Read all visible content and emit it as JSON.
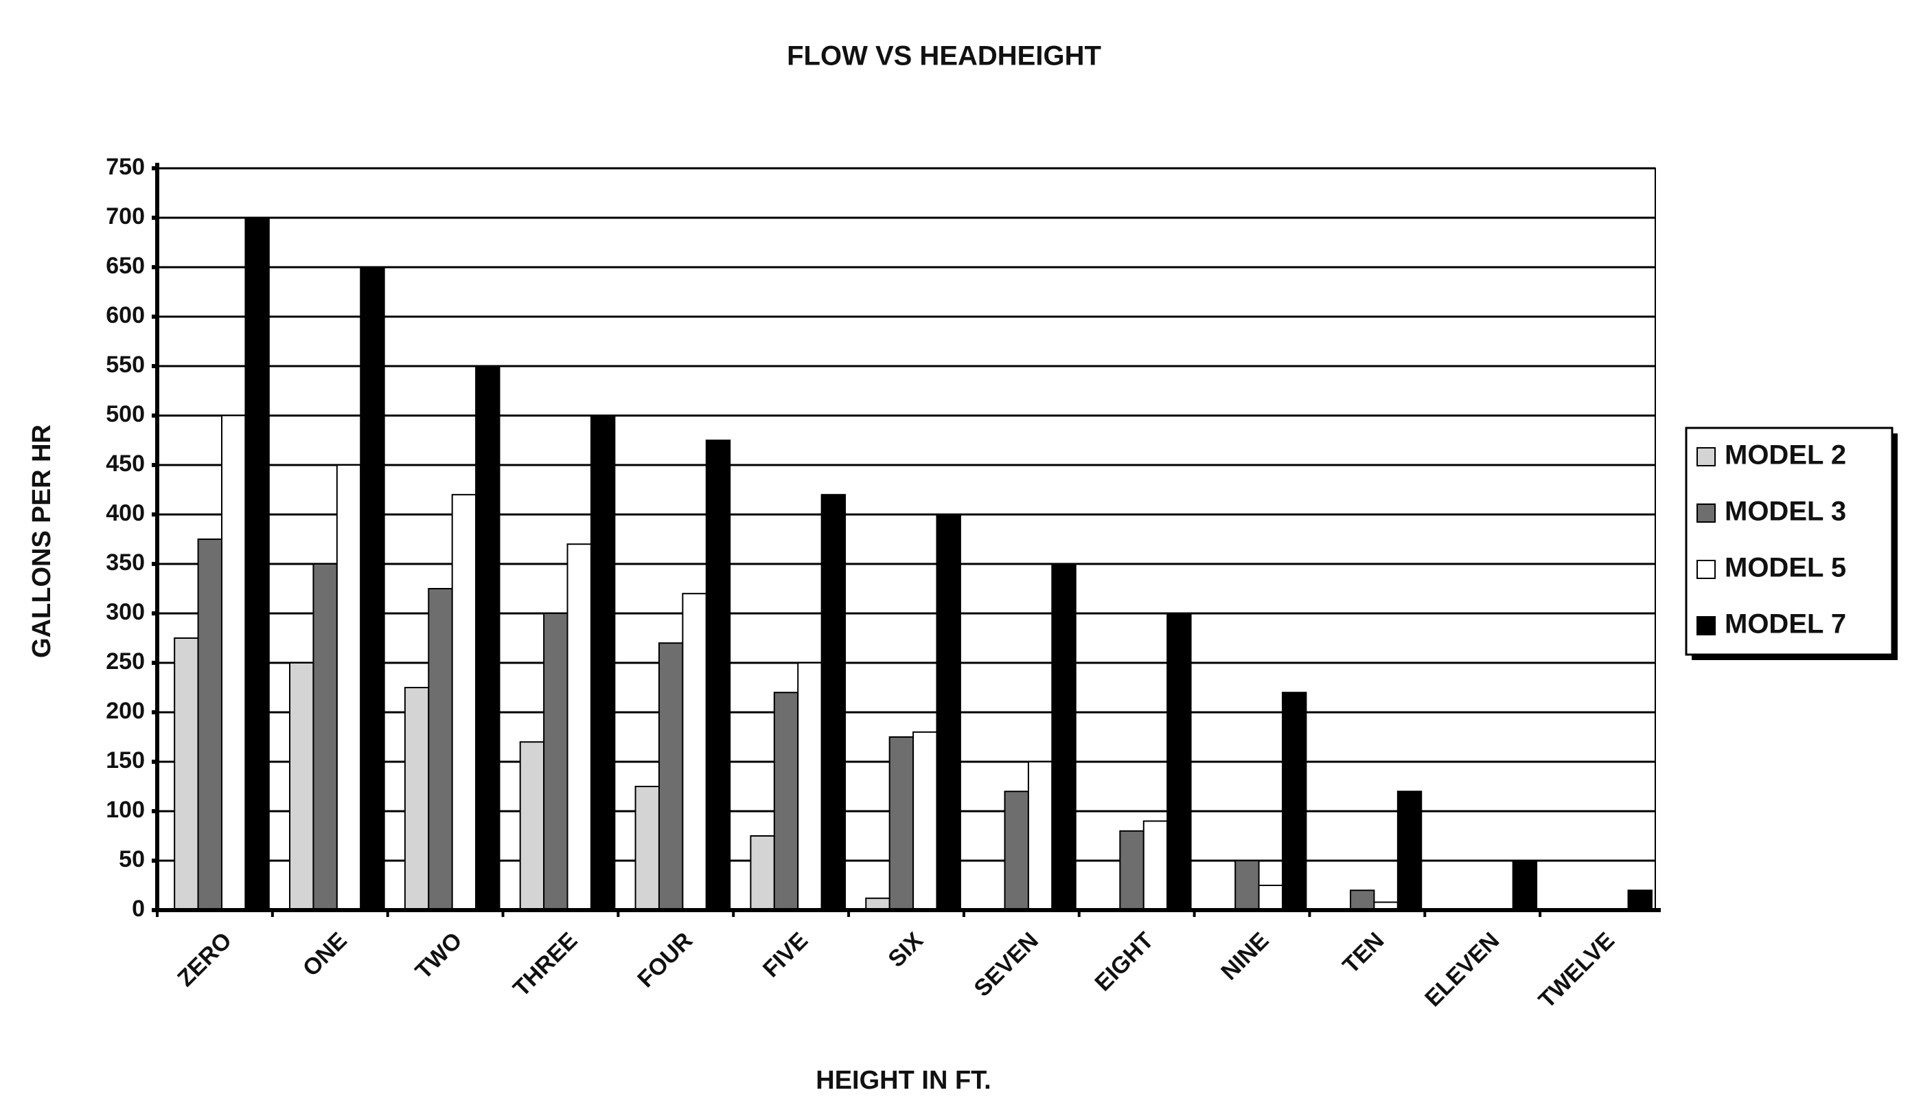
{
  "chart_data": {
    "type": "bar",
    "title": "FLOW VS HEADHEIGHT",
    "x_label": "HEIGHT IN FT.",
    "y_label": "GALLONS PER HR",
    "categories": [
      "ZERO",
      "ONE",
      "TWO",
      "THREE",
      "FOUR",
      "FIVE",
      "SIX",
      "SEVEN",
      "EIGHT",
      "NINE",
      "TEN",
      "ELEVEN",
      "TWELVE"
    ],
    "series": [
      {
        "name": "MODEL 2",
        "color": "#d4d4d4",
        "values": [
          275,
          250,
          225,
          170,
          125,
          75,
          12,
          0,
          0,
          0,
          0,
          0,
          0
        ]
      },
      {
        "name": "MODEL 3",
        "color": "#6e6e6e",
        "values": [
          375,
          350,
          325,
          300,
          270,
          220,
          175,
          120,
          80,
          50,
          20,
          0,
          0
        ]
      },
      {
        "name": "MODEL 5",
        "color": "#ffffff",
        "values": [
          500,
          450,
          420,
          370,
          320,
          250,
          180,
          150,
          90,
          25,
          8,
          0,
          0
        ]
      },
      {
        "name": "MODEL 7",
        "color": "#000000",
        "values": [
          700,
          650,
          550,
          500,
          475,
          420,
          400,
          350,
          300,
          220,
          120,
          50,
          20
        ]
      }
    ],
    "ylim": [
      0,
      750
    ],
    "yticks": [
      0,
      50,
      100,
      150,
      200,
      250,
      300,
      350,
      400,
      450,
      500,
      550,
      600,
      650,
      700,
      750
    ],
    "grid": true,
    "legend": "right"
  }
}
